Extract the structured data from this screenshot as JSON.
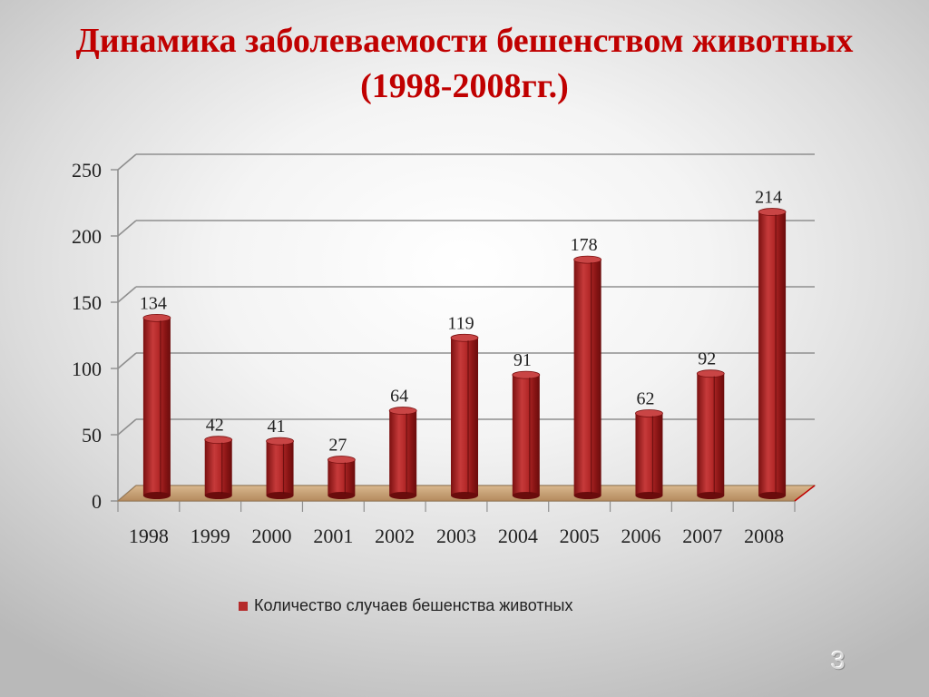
{
  "title": {
    "line1": "Динамика заболеваемости бешенством животных",
    "line2": "(1998-2008гг.)"
  },
  "page_number": "3",
  "colors": {
    "title": "#c00000",
    "bar": "#b52a2a",
    "floor": "#c8a27a"
  },
  "chart_data": {
    "type": "bar",
    "categories": [
      "1998",
      "1999",
      "2000",
      "2001",
      "2002",
      "2003",
      "2004",
      "2005",
      "2006",
      "2007",
      "2008"
    ],
    "series": [
      {
        "name": "Количество случаев бешенства животных",
        "values": [
          134,
          42,
          41,
          27,
          64,
          119,
          91,
          178,
          62,
          92,
          214
        ]
      }
    ],
    "ylim": [
      0,
      250
    ],
    "yticks": [
      0,
      50,
      100,
      150,
      200,
      250
    ],
    "grid": true,
    "legend": "bottom",
    "data_labels": true
  }
}
